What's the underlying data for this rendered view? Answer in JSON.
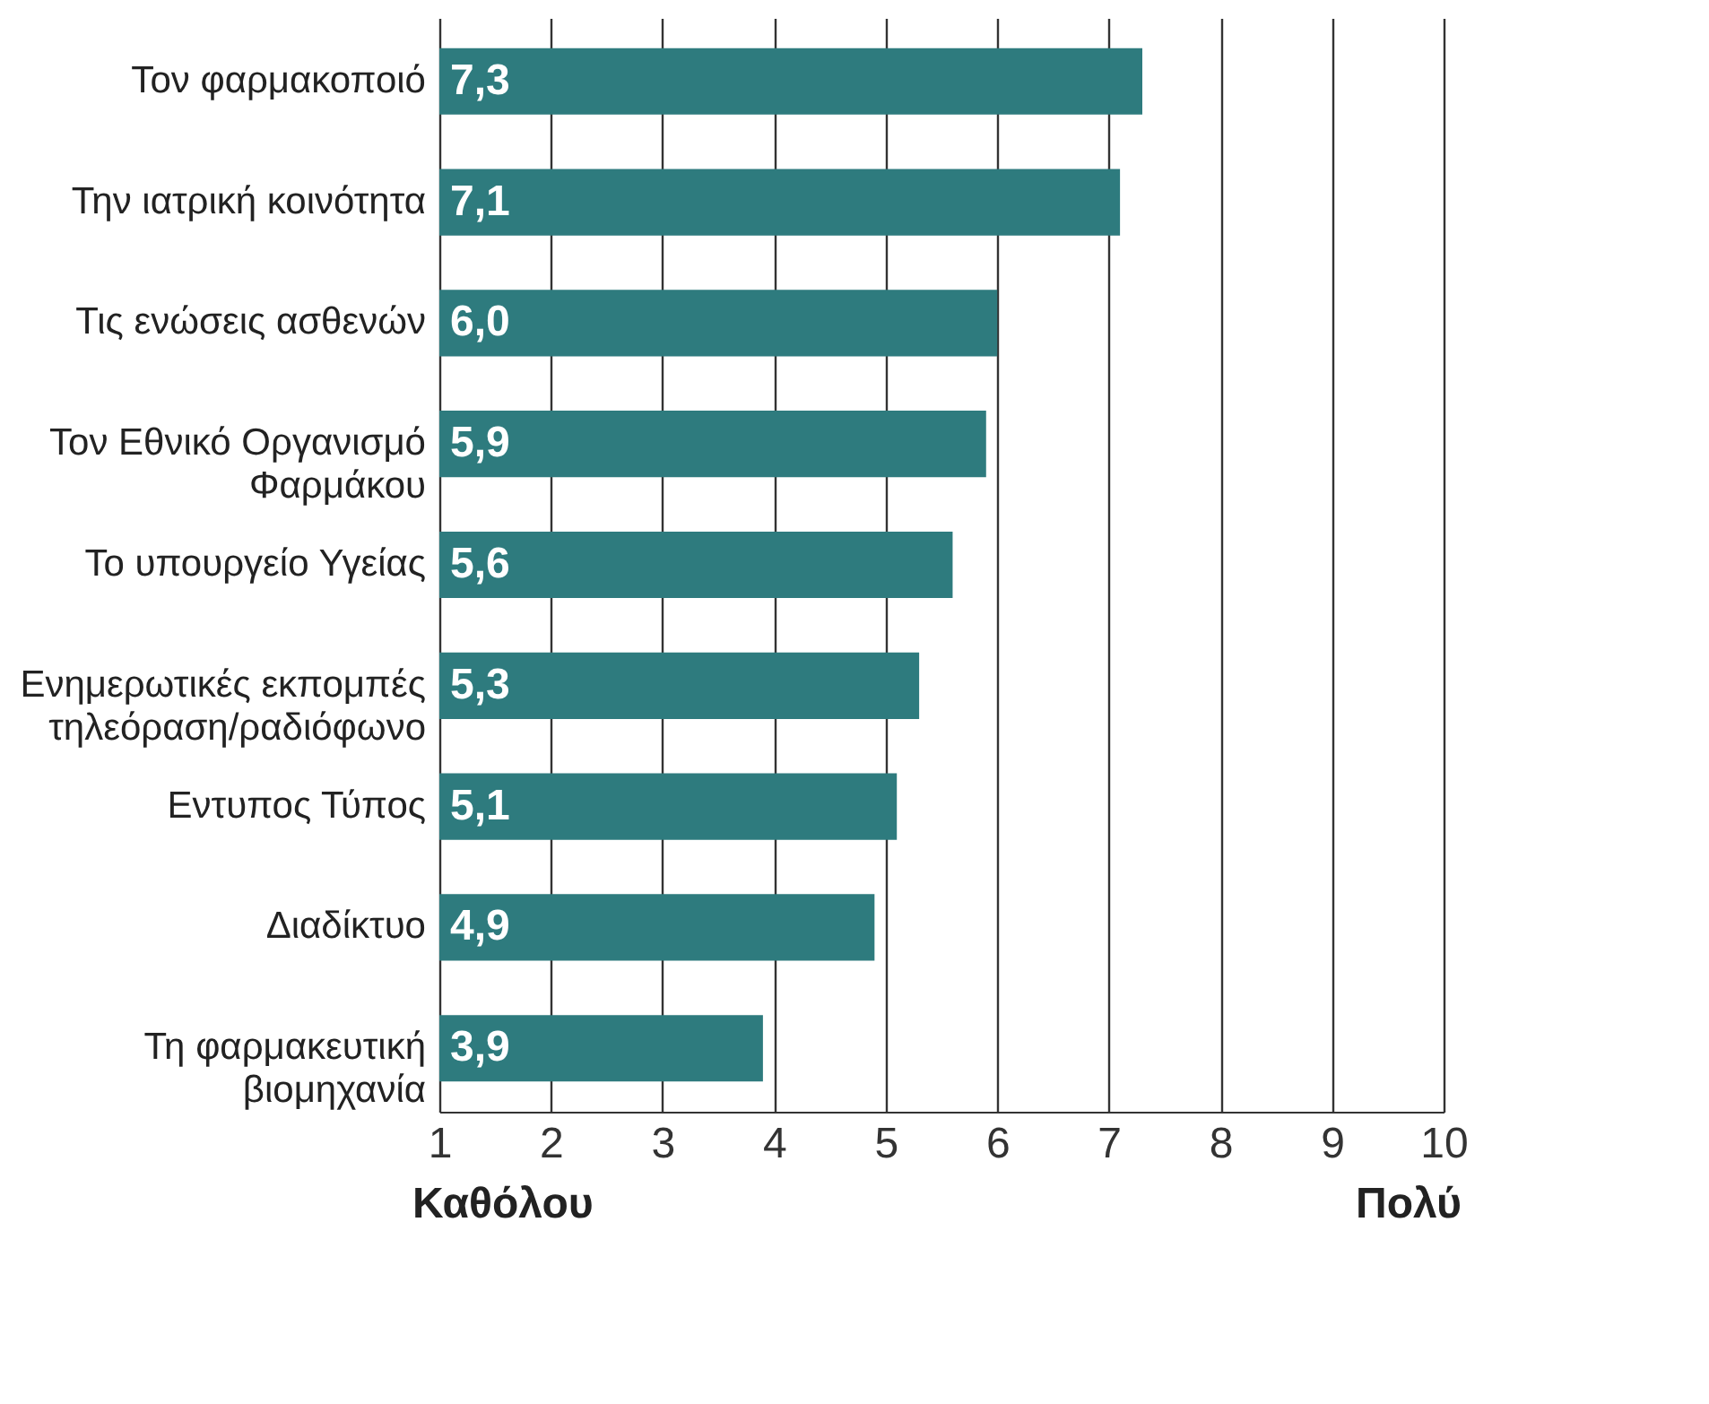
{
  "chart_data": {
    "type": "bar",
    "orientation": "horizontal",
    "categories": [
      "Τον φαρμακοποιό",
      "Την ιατρική κοινότητα",
      "Τις ενώσεις ασθενών",
      "Τον Εθνικό Οργανισμό Φαρμάκου",
      "Το υπουργείο Υγείας",
      "Ενημερωτικές εκπομπές τηλεόραση/ραδιόφωνο",
      "Εντυπος Τύπος",
      "Διαδίκτυο",
      "Τη φαρμακευτική βιομηχανία"
    ],
    "values": [
      7.3,
      7.1,
      6.0,
      5.9,
      5.6,
      5.3,
      5.1,
      4.9,
      3.9
    ],
    "value_labels": [
      "7,3",
      "7,1",
      "6,0",
      "5,9",
      "5,6",
      "5,3",
      "5,1",
      "4,9",
      "3,9"
    ],
    "color": "#2e7b7e",
    "xlim": [
      1,
      10
    ],
    "xticks": [
      1,
      2,
      3,
      4,
      5,
      6,
      7,
      8,
      9,
      10
    ],
    "grid": "x",
    "annotations": [
      "Καθόλου",
      "Πολύ"
    ]
  }
}
